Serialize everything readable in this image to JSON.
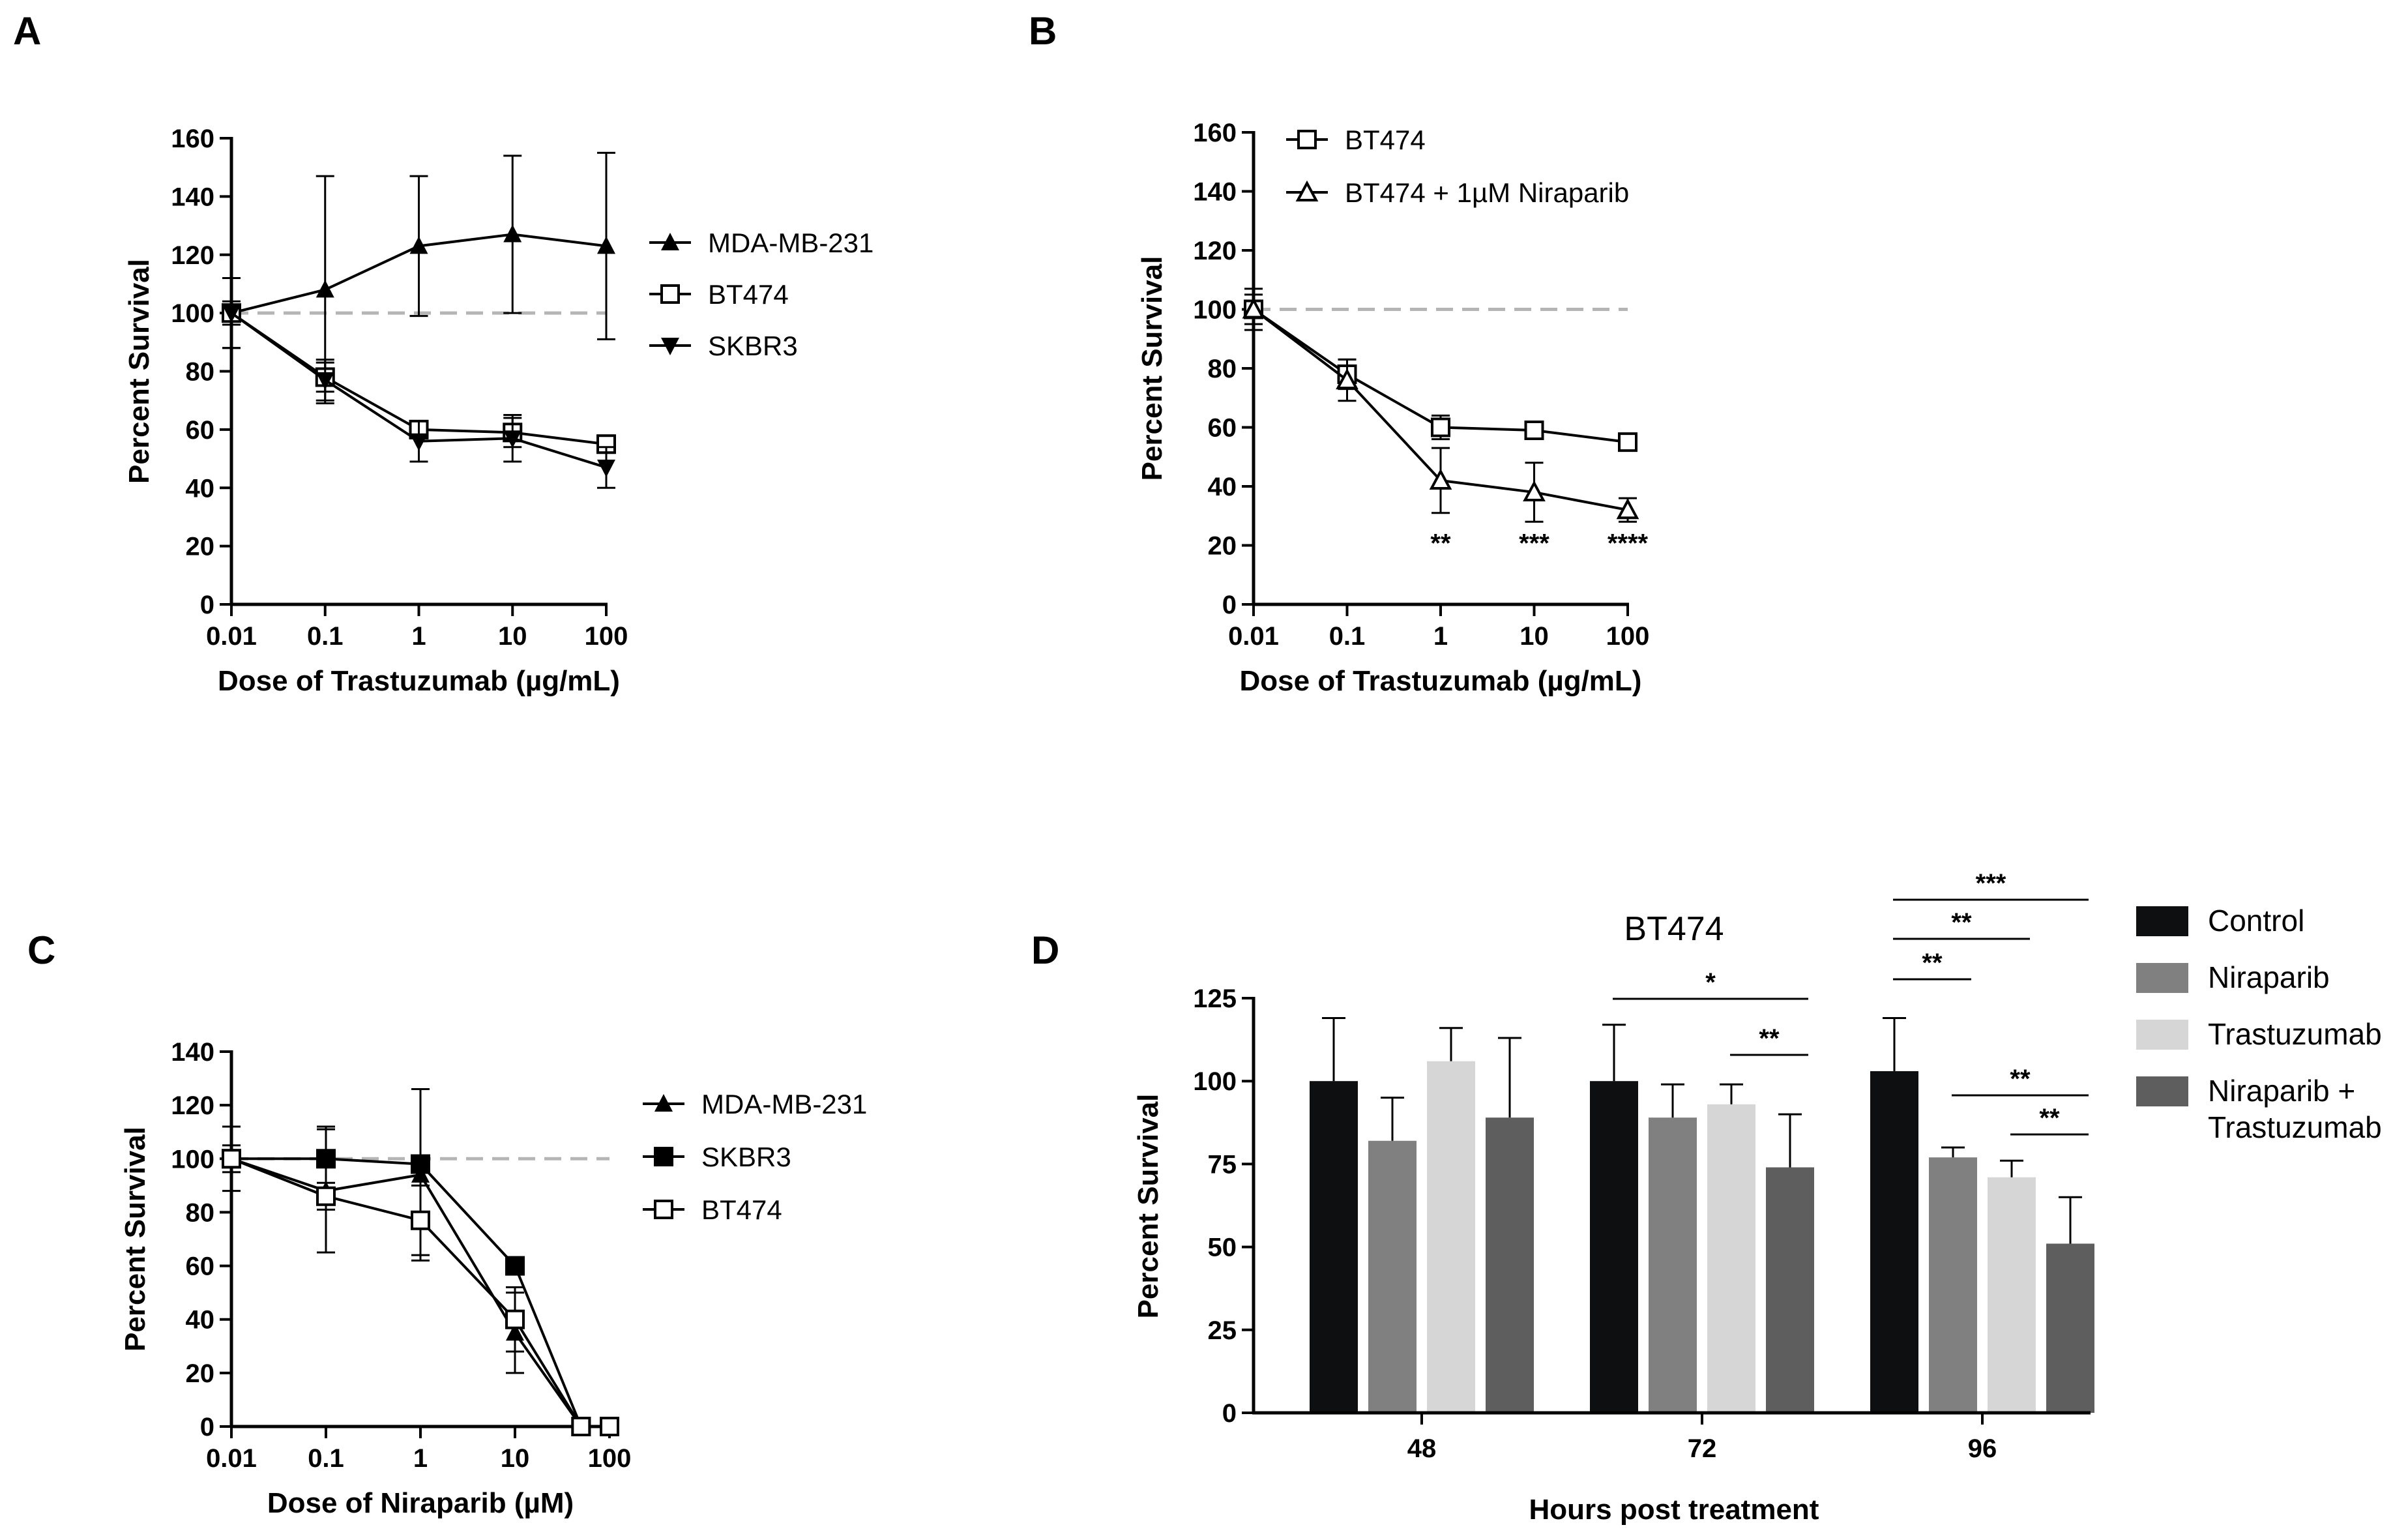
{
  "chart_data": [
    {
      "panel": "A",
      "type": "line",
      "xlabel": "Dose of Trastuzumab (µg/mL)",
      "ylabel": "Percent Survival",
      "x_scale": "log",
      "x_ticks": [
        "0.01",
        "0.1",
        "1",
        "10",
        "100"
      ],
      "x_tick_values": [
        0.01,
        0.1,
        1,
        10,
        100
      ],
      "ylim": [
        0,
        160
      ],
      "y_ticks": [
        0,
        20,
        40,
        60,
        80,
        100,
        120,
        140,
        160
      ],
      "reference_line": 100,
      "legend_position": "right",
      "x": [
        0.01,
        0.1,
        1,
        10,
        100
      ],
      "series": [
        {
          "name": "MDA-MB-231",
          "marker": "triangle-up-filled",
          "values": [
            100,
            108,
            123,
            127,
            123
          ],
          "errors": [
            12,
            39,
            24,
            27,
            32
          ]
        },
        {
          "name": "BT474",
          "marker": "square-open",
          "values": [
            100,
            78,
            60,
            59,
            55
          ],
          "errors": [
            4,
            5,
            3,
            5,
            3
          ]
        },
        {
          "name": "SKBR3",
          "marker": "triangle-down-filled",
          "values": [
            100,
            77,
            56,
            57,
            47
          ],
          "errors": [
            12,
            7,
            7,
            8,
            7
          ]
        }
      ]
    },
    {
      "panel": "B",
      "type": "line",
      "xlabel": "Dose of Trastuzumab (µg/mL)",
      "ylabel": "Percent Survival",
      "x_scale": "log",
      "x_ticks": [
        "0.01",
        "0.1",
        "1",
        "10",
        "100"
      ],
      "x_tick_values": [
        0.01,
        0.1,
        1,
        10,
        100
      ],
      "ylim": [
        0,
        160
      ],
      "y_ticks": [
        0,
        20,
        40,
        60,
        80,
        100,
        120,
        140,
        160
      ],
      "reference_line": 100,
      "legend_position": "top-left",
      "x": [
        0.01,
        0.1,
        1,
        10,
        100
      ],
      "series": [
        {
          "name": "BT474",
          "marker": "square-open",
          "values": [
            100,
            78,
            60,
            59,
            55
          ],
          "errors": [
            5,
            5,
            4,
            2,
            2
          ]
        },
        {
          "name": "BT474 + 1µM Niraparib",
          "marker": "triangle-open",
          "values": [
            100,
            76,
            42,
            38,
            32
          ],
          "errors": [
            7,
            7,
            11,
            10,
            4
          ]
        }
      ],
      "annotations": [
        {
          "x": 1,
          "text": "**"
        },
        {
          "x": 10,
          "text": "***"
        },
        {
          "x": 100,
          "text": "****"
        }
      ]
    },
    {
      "panel": "C",
      "type": "line",
      "xlabel": "Dose of Niraparib (µM)",
      "ylabel": "Percent Survival",
      "x_scale": "log",
      "x_ticks": [
        "0.01",
        "0.1",
        "1",
        "10",
        "100"
      ],
      "x_tick_values": [
        0.01,
        0.1,
        1,
        10,
        100
      ],
      "ylim": [
        0,
        140
      ],
      "y_ticks": [
        0,
        20,
        40,
        60,
        80,
        100,
        120,
        140
      ],
      "reference_line": 100,
      "legend_position": "right",
      "x": [
        0.01,
        0.1,
        1,
        10,
        50,
        100
      ],
      "series": [
        {
          "name": "MDA-MB-231",
          "marker": "triangle-up-filled",
          "values": [
            100,
            88,
            94,
            35,
            0,
            null
          ],
          "errors": [
            12,
            23,
            32,
            15,
            0,
            0
          ]
        },
        {
          "name": "SKBR3",
          "marker": "square-filled",
          "values": [
            100,
            100,
            98,
            60,
            0,
            null
          ],
          "errors": [
            3,
            12,
            3,
            3,
            0,
            0
          ]
        },
        {
          "name": "BT474",
          "marker": "square-open",
          "values": [
            100,
            86,
            77,
            40,
            0,
            0
          ],
          "errors": [
            5,
            5,
            13,
            12,
            0,
            0
          ]
        }
      ]
    },
    {
      "panel": "D",
      "type": "bar",
      "title": "BT474",
      "xlabel": "Hours post treatment",
      "ylabel": "Percent Survival",
      "categories": [
        "48",
        "72",
        "96"
      ],
      "ylim": [
        0,
        125
      ],
      "y_ticks": [
        0,
        25,
        50,
        75,
        100,
        125
      ],
      "legend_position": "right",
      "series": [
        {
          "name": "Control",
          "color": "#0d0f10",
          "values": [
            100,
            100,
            103
          ],
          "errors": [
            19,
            17,
            16
          ]
        },
        {
          "name": "Niraparib",
          "color": "#808080",
          "values": [
            82,
            89,
            77
          ],
          "errors": [
            13,
            10,
            3
          ]
        },
        {
          "name": "Trastuzumab",
          "color": "#d6d6d6",
          "values": [
            106,
            93,
            71
          ],
          "errors": [
            10,
            6,
            5
          ]
        },
        {
          "name_lines": [
            "Niraparib +",
            "Trastuzumab"
          ],
          "color": "#5e5e5e",
          "values": [
            89,
            74,
            51
          ],
          "errors": [
            24,
            16,
            14
          ]
        }
      ],
      "significance": [
        {
          "category": "72",
          "from_series": 0,
          "to_series": 3,
          "text": "*"
        },
        {
          "category": "72",
          "from_series": 2,
          "to_series": 3,
          "text": "**"
        },
        {
          "category": "96",
          "from_series": 0,
          "to_series": 3,
          "text": "***"
        },
        {
          "category": "96",
          "from_series": 0,
          "to_series": 2,
          "text": "**"
        },
        {
          "category": "96",
          "from_series": 0,
          "to_series": 1,
          "text": "**"
        },
        {
          "category": "96",
          "from_series": 1,
          "to_series": 3,
          "text": "**"
        },
        {
          "category": "96",
          "from_series": 2,
          "to_series": 3,
          "text": "**"
        }
      ]
    }
  ]
}
